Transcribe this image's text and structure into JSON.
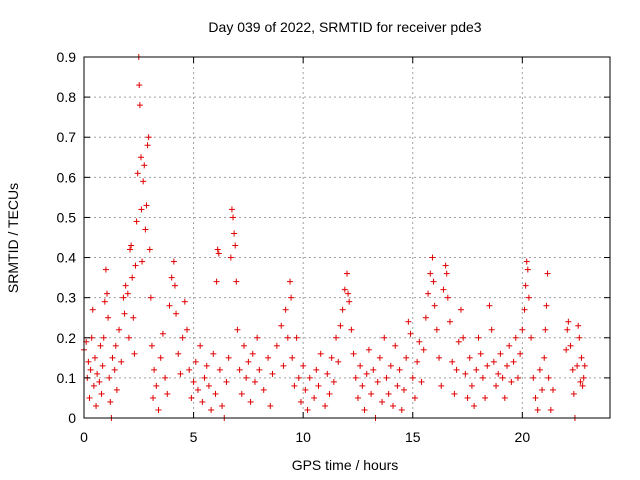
{
  "chart_data": {
    "type": "scatter",
    "title": "Day 039 of 2022, SRMTID for receiver pde3",
    "xlabel": "GPS time / hours",
    "ylabel": "SRMTID / TECUs",
    "xlim": [
      0,
      24
    ],
    "ylim": [
      0,
      0.9
    ],
    "xticks": [
      "0",
      "5",
      "10",
      "15",
      "20"
    ],
    "xtick_values": [
      0,
      5,
      10,
      15,
      20
    ],
    "yticks": [
      "0",
      "0.1",
      "0.2",
      "0.3",
      "0.4",
      "0.5",
      "0.6",
      "0.7",
      "0.8",
      "0.9"
    ],
    "ytick_values": [
      0,
      0.1,
      0.2,
      0.3,
      0.4,
      0.5,
      0.6,
      0.7,
      0.8,
      0.9
    ],
    "grid": true,
    "marker": "+",
    "color": "#e00000",
    "series": [
      {
        "points": [
          [
            0.0,
            0.17
          ],
          [
            0.1,
            0.19
          ],
          [
            0.15,
            0.1
          ],
          [
            0.2,
            0.14
          ],
          [
            0.25,
            0.05
          ],
          [
            0.3,
            0.12
          ],
          [
            0.35,
            0.2
          ],
          [
            0.4,
            0.27
          ],
          [
            0.45,
            0.08
          ],
          [
            0.5,
            0.15
          ],
          [
            0.55,
            0.03
          ],
          [
            0.6,
            0.11
          ],
          [
            0.7,
            0.09
          ],
          [
            0.75,
            0.18
          ],
          [
            0.8,
            0.06
          ],
          [
            0.85,
            0.13
          ],
          [
            0.9,
            0.2
          ],
          [
            0.95,
            0.29
          ],
          [
            1.0,
            0.37
          ],
          [
            1.05,
            0.31
          ],
          [
            1.1,
            0.25
          ],
          [
            1.15,
            0.1
          ],
          [
            1.2,
            0.04
          ],
          [
            1.25,
            0.0
          ],
          [
            1.3,
            0.15
          ],
          [
            1.4,
            0.12
          ],
          [
            1.45,
            0.18
          ],
          [
            1.5,
            0.07
          ],
          [
            1.6,
            0.22
          ],
          [
            1.7,
            0.14
          ],
          [
            1.8,
            0.3
          ],
          [
            1.85,
            0.26
          ],
          [
            1.9,
            0.33
          ],
          [
            2.0,
            0.31
          ],
          [
            2.05,
            0.2
          ],
          [
            2.1,
            0.42
          ],
          [
            2.15,
            0.43
          ],
          [
            2.2,
            0.35
          ],
          [
            2.25,
            0.25
          ],
          [
            2.3,
            0.16
          ],
          [
            2.35,
            0.38
          ],
          [
            2.4,
            0.49
          ],
          [
            2.45,
            0.61
          ],
          [
            2.5,
            0.9
          ],
          [
            2.52,
            0.83
          ],
          [
            2.55,
            0.78
          ],
          [
            2.6,
            0.65
          ],
          [
            2.62,
            0.52
          ],
          [
            2.65,
            0.39
          ],
          [
            2.7,
            0.59
          ],
          [
            2.75,
            0.63
          ],
          [
            2.8,
            0.47
          ],
          [
            2.85,
            0.53
          ],
          [
            2.9,
            0.68
          ],
          [
            2.95,
            0.7
          ],
          [
            3.0,
            0.42
          ],
          [
            3.05,
            0.3
          ],
          [
            3.1,
            0.18
          ],
          [
            3.15,
            0.05
          ],
          [
            3.2,
            0.12
          ],
          [
            3.3,
            0.08
          ],
          [
            3.4,
            0.02
          ],
          [
            3.5,
            0.15
          ],
          [
            3.6,
            0.21
          ],
          [
            3.7,
            0.1
          ],
          [
            3.8,
            0.06
          ],
          [
            3.9,
            0.28
          ],
          [
            4.0,
            0.35
          ],
          [
            4.1,
            0.39
          ],
          [
            4.15,
            0.33
          ],
          [
            4.2,
            0.26
          ],
          [
            4.3,
            0.16
          ],
          [
            4.4,
            0.11
          ],
          [
            4.5,
            0.2
          ],
          [
            4.6,
            0.29
          ],
          [
            4.7,
            0.22
          ],
          [
            4.8,
            0.12
          ],
          [
            4.9,
            0.05
          ],
          [
            5.0,
            0.09
          ],
          [
            5.1,
            0.14
          ],
          [
            5.2,
            0.07
          ],
          [
            5.3,
            0.18
          ],
          [
            5.4,
            0.04
          ],
          [
            5.5,
            0.1
          ],
          [
            5.6,
            0.13
          ],
          [
            5.7,
            0.08
          ],
          [
            5.8,
            0.02
          ],
          [
            5.9,
            0.16
          ],
          [
            6.0,
            0.06
          ],
          [
            6.05,
            0.34
          ],
          [
            6.1,
            0.42
          ],
          [
            6.15,
            0.41
          ],
          [
            6.2,
            0.12
          ],
          [
            6.3,
            0.03
          ],
          [
            6.4,
            0.0
          ],
          [
            6.5,
            0.09
          ],
          [
            6.6,
            0.15
          ],
          [
            6.7,
            0.4
          ],
          [
            6.75,
            0.52
          ],
          [
            6.8,
            0.5
          ],
          [
            6.85,
            0.46
          ],
          [
            6.9,
            0.43
          ],
          [
            6.95,
            0.34
          ],
          [
            7.0,
            0.22
          ],
          [
            7.1,
            0.12
          ],
          [
            7.2,
            0.06
          ],
          [
            7.3,
            0.18
          ],
          [
            7.4,
            0.1
          ],
          [
            7.5,
            0.14
          ],
          [
            7.6,
            0.04
          ],
          [
            7.7,
            0.16
          ],
          [
            7.8,
            0.09
          ],
          [
            7.9,
            0.2
          ],
          [
            8.0,
            0.12
          ],
          [
            8.2,
            0.07
          ],
          [
            8.4,
            0.15
          ],
          [
            8.5,
            0.03
          ],
          [
            8.6,
            0.11
          ],
          [
            8.8,
            0.18
          ],
          [
            9.0,
            0.23
          ],
          [
            9.1,
            0.13
          ],
          [
            9.2,
            0.27
          ],
          [
            9.3,
            0.2
          ],
          [
            9.4,
            0.34
          ],
          [
            9.45,
            0.3
          ],
          [
            9.5,
            0.15
          ],
          [
            9.6,
            0.08
          ],
          [
            9.7,
            0.2
          ],
          [
            9.8,
            0.1
          ],
          [
            9.9,
            0.04
          ],
          [
            10.0,
            0.13
          ],
          [
            10.1,
            0.07
          ],
          [
            10.2,
            0.02
          ],
          [
            10.3,
            0.1
          ],
          [
            10.5,
            0.05
          ],
          [
            10.6,
            0.12
          ],
          [
            10.7,
            0.08
          ],
          [
            10.8,
            0.16
          ],
          [
            11.0,
            0.03
          ],
          [
            11.1,
            0.11
          ],
          [
            11.2,
            0.06
          ],
          [
            11.3,
            0.15
          ],
          [
            11.4,
            0.09
          ],
          [
            11.5,
            0.2
          ],
          [
            11.6,
            0.14
          ],
          [
            11.7,
            0.23
          ],
          [
            11.8,
            0.27
          ],
          [
            11.9,
            0.32
          ],
          [
            12.0,
            0.36
          ],
          [
            12.05,
            0.31
          ],
          [
            12.1,
            0.29
          ],
          [
            12.2,
            0.22
          ],
          [
            12.3,
            0.16
          ],
          [
            12.4,
            0.1
          ],
          [
            12.5,
            0.05
          ],
          [
            12.6,
            0.13
          ],
          [
            12.7,
            0.08
          ],
          [
            12.8,
            0.02
          ],
          [
            12.9,
            0.11
          ],
          [
            13.0,
            0.17
          ],
          [
            13.1,
            0.06
          ],
          [
            13.2,
            0.12
          ],
          [
            13.3,
            0.0
          ],
          [
            13.4,
            0.09
          ],
          [
            13.5,
            0.15
          ],
          [
            13.6,
            0.04
          ],
          [
            13.7,
            0.2
          ],
          [
            13.8,
            0.1
          ],
          [
            13.9,
            0.06
          ],
          [
            14.0,
            0.13
          ],
          [
            14.1,
            0.03
          ],
          [
            14.2,
            0.18
          ],
          [
            14.3,
            0.08
          ],
          [
            14.4,
            0.12
          ],
          [
            14.5,
            0.02
          ],
          [
            14.6,
            0.07
          ],
          [
            14.7,
            0.15
          ],
          [
            14.8,
            0.24
          ],
          [
            14.9,
            0.21
          ],
          [
            15.0,
            0.1
          ],
          [
            15.1,
            0.05
          ],
          [
            15.2,
            0.14
          ],
          [
            15.3,
            0.19
          ],
          [
            15.4,
            0.09
          ],
          [
            15.5,
            0.17
          ],
          [
            15.6,
            0.25
          ],
          [
            15.7,
            0.31
          ],
          [
            15.8,
            0.36
          ],
          [
            15.9,
            0.4
          ],
          [
            15.95,
            0.34
          ],
          [
            16.0,
            0.28
          ],
          [
            16.1,
            0.22
          ],
          [
            16.2,
            0.15
          ],
          [
            16.3,
            0.08
          ],
          [
            16.4,
            0.32
          ],
          [
            16.5,
            0.38
          ],
          [
            16.55,
            0.36
          ],
          [
            16.6,
            0.3
          ],
          [
            16.7,
            0.24
          ],
          [
            16.8,
            0.14
          ],
          [
            16.9,
            0.06
          ],
          [
            17.0,
            0.12
          ],
          [
            17.1,
            0.19
          ],
          [
            17.2,
            0.27
          ],
          [
            17.3,
            0.2
          ],
          [
            17.4,
            0.11
          ],
          [
            17.5,
            0.05
          ],
          [
            17.6,
            0.15
          ],
          [
            17.7,
            0.08
          ],
          [
            17.8,
            0.03
          ],
          [
            17.9,
            0.12
          ],
          [
            18.0,
            0.2
          ],
          [
            18.1,
            0.16
          ],
          [
            18.2,
            0.1
          ],
          [
            18.3,
            0.05
          ],
          [
            18.4,
            0.13
          ],
          [
            18.5,
            0.28
          ],
          [
            18.6,
            0.22
          ],
          [
            18.7,
            0.14
          ],
          [
            18.8,
            0.08
          ],
          [
            18.9,
            0.11
          ],
          [
            19.0,
            0.16
          ],
          [
            19.1,
            0.1
          ],
          [
            19.2,
            0.05
          ],
          [
            19.3,
            0.13
          ],
          [
            19.4,
            0.18
          ],
          [
            19.5,
            0.09
          ],
          [
            19.6,
            0.14
          ],
          [
            19.7,
            0.2
          ],
          [
            19.8,
            0.1
          ],
          [
            19.9,
            0.16
          ],
          [
            20.0,
            0.22
          ],
          [
            20.1,
            0.27
          ],
          [
            20.15,
            0.33
          ],
          [
            20.2,
            0.39
          ],
          [
            20.25,
            0.37
          ],
          [
            20.3,
            0.3
          ],
          [
            20.4,
            0.2
          ],
          [
            20.5,
            0.1
          ],
          [
            20.6,
            0.05
          ],
          [
            20.7,
            0.02
          ],
          [
            20.8,
            0.12
          ],
          [
            20.9,
            0.07
          ],
          [
            21.0,
            0.15
          ],
          [
            21.05,
            0.22
          ],
          [
            21.1,
            0.28
          ],
          [
            21.15,
            0.36
          ],
          [
            21.2,
            0.1
          ],
          [
            21.3,
            0.02
          ],
          [
            21.4,
            0.07
          ],
          [
            22.0,
            0.17
          ],
          [
            22.05,
            0.22
          ],
          [
            22.1,
            0.24
          ],
          [
            22.2,
            0.18
          ],
          [
            22.3,
            0.12
          ],
          [
            22.35,
            0.06
          ],
          [
            22.4,
            0.0
          ],
          [
            22.5,
            0.13
          ],
          [
            22.55,
            0.23
          ],
          [
            22.6,
            0.2
          ],
          [
            22.65,
            0.09
          ],
          [
            22.7,
            0.15
          ],
          [
            22.75,
            0.08
          ],
          [
            22.8,
            0.1
          ],
          [
            22.85,
            0.13
          ]
        ]
      }
    ]
  }
}
